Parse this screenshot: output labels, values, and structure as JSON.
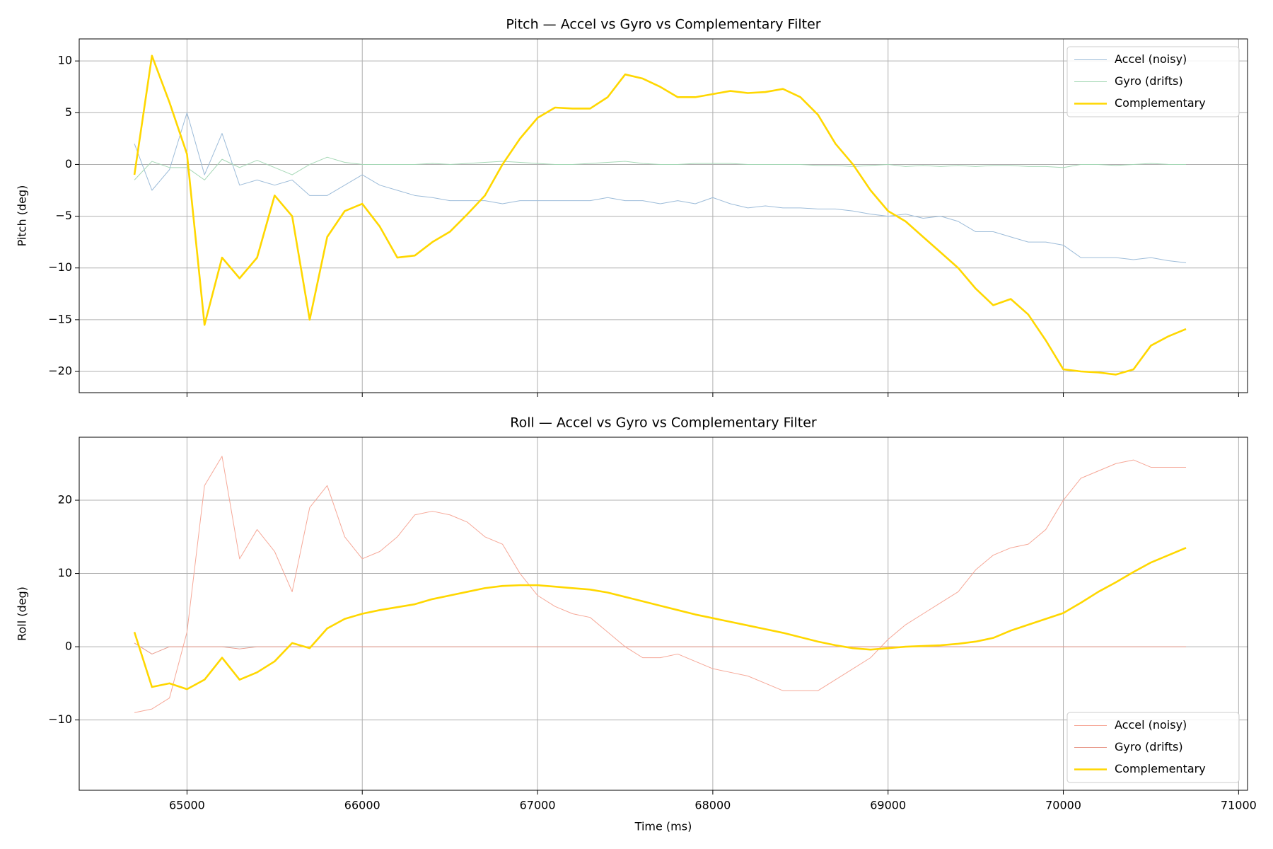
{
  "chart_data": [
    {
      "type": "line",
      "title": "Pitch — Accel vs Gyro vs Complementary Filter",
      "ylabel": "Pitch (deg)",
      "x": [
        64700,
        64800,
        64900,
        65000,
        65100,
        65200,
        65300,
        65400,
        65500,
        65600,
        65700,
        65800,
        65900,
        66000,
        66100,
        66200,
        66300,
        66400,
        66500,
        66600,
        66700,
        66800,
        66900,
        67000,
        67100,
        67200,
        67300,
        67400,
        67500,
        67600,
        67700,
        67800,
        67900,
        68000,
        68100,
        68200,
        68300,
        68400,
        68500,
        68600,
        68700,
        68800,
        68900,
        69000,
        69100,
        69200,
        69300,
        69400,
        69500,
        69600,
        69700,
        69800,
        69900,
        70000,
        70100,
        70200,
        70300,
        70400,
        70500,
        70600,
        70700
      ],
      "series": [
        {
          "name": "Accel (noisy)",
          "color": "#9dbcd9",
          "width": 1,
          "values": [
            2,
            -2.5,
            -0.5,
            5,
            -1,
            3,
            -2,
            -1.5,
            -2,
            -1.5,
            -3,
            -3,
            -2,
            -1,
            -2,
            -2.5,
            -3,
            -3.2,
            -3.5,
            -3.5,
            -3.5,
            -3.8,
            -3.5,
            -3.5,
            -3.5,
            -3.5,
            -3.5,
            -3.2,
            -3.5,
            -3.5,
            -3.8,
            -3.5,
            -3.8,
            -3.2,
            -3.8,
            -4.2,
            -4,
            -4.2,
            -4.2,
            -4.3,
            -4.3,
            -4.5,
            -4.8,
            -5,
            -4.8,
            -5.2,
            -5,
            -5.5,
            -6.5,
            -6.5,
            -7,
            -7.5,
            -7.5,
            -7.8,
            -9,
            -9,
            -9,
            -9.2,
            -9,
            -9.3,
            -9.5
          ]
        },
        {
          "name": "Gyro (drifts)",
          "color": "#a6d8b6",
          "width": 1,
          "values": [
            -1.5,
            0.3,
            -0.3,
            -0.3,
            -1.5,
            0.5,
            -0.3,
            0.4,
            -0.3,
            -1,
            0,
            0.7,
            0.2,
            0,
            0,
            0,
            0,
            0.1,
            0,
            0.1,
            0.2,
            0.3,
            0.2,
            0.1,
            0,
            0,
            0.1,
            0.2,
            0.3,
            0.1,
            0,
            0,
            0.1,
            0.1,
            0.1,
            0,
            0,
            0,
            0,
            -0.1,
            -0.1,
            -0.2,
            -0.1,
            0,
            -0.2,
            -0.1,
            -0.2,
            -0.1,
            -0.2,
            -0.1,
            -0.1,
            -0.2,
            -0.2,
            -0.3,
            0,
            0,
            -0.1,
            0,
            0.1,
            0,
            0
          ]
        },
        {
          "name": "Complementary",
          "color": "#ffd700",
          "width": 2.6,
          "values": [
            -1,
            10.5,
            6,
            1,
            -15.5,
            -9,
            -11,
            -9,
            -3,
            -5,
            -15,
            -7,
            -4.5,
            -3.8,
            -6,
            -9,
            -8.8,
            -7.5,
            -6.5,
            -4.8,
            -3,
            0,
            2.5,
            4.5,
            5.5,
            5.4,
            5.4,
            6.5,
            8.7,
            8.3,
            7.5,
            6.5,
            6.5,
            6.8,
            7.1,
            6.9,
            7,
            7.3,
            6.5,
            4.8,
            2,
            0,
            -2.5,
            -4.5,
            -5.5,
            -7,
            -8.5,
            -10,
            -12,
            -13.6,
            -13,
            -14.5,
            -17,
            -19.8,
            -20,
            -20.1,
            -20.3,
            -19.8,
            -17.5,
            -16.6,
            -15.9
          ]
        }
      ],
      "xlim": [
        64385,
        71051
      ],
      "xticks": [
        65000,
        66000,
        67000,
        68000,
        69000,
        70000,
        71000
      ],
      "ylim": [
        -22.05,
        12.13
      ],
      "yticks": [
        {
          "value": -20,
          "label": "−20"
        },
        {
          "value": -15,
          "label": "−15"
        },
        {
          "value": -10,
          "label": "−10"
        },
        {
          "value": -5,
          "label": "−5"
        },
        0,
        5,
        10
      ],
      "grid": true,
      "legend": "upper right"
    },
    {
      "type": "line",
      "title": "Roll — Accel vs Gyro vs Complementary Filter",
      "ylabel": "Roll (deg)",
      "xlabel": "Time (ms)",
      "x": [
        64700,
        64800,
        64900,
        65000,
        65100,
        65200,
        65300,
        65400,
        65500,
        65600,
        65700,
        65800,
        65900,
        66000,
        66100,
        66200,
        66300,
        66400,
        66500,
        66600,
        66700,
        66800,
        66900,
        67000,
        67100,
        67200,
        67300,
        67400,
        67500,
        67600,
        67700,
        67800,
        67900,
        68000,
        68100,
        68200,
        68300,
        68400,
        68500,
        68600,
        68700,
        68800,
        68900,
        69000,
        69100,
        69200,
        69300,
        69400,
        69500,
        69600,
        69700,
        69800,
        69900,
        70000,
        70100,
        70200,
        70300,
        70400,
        70500,
        70600,
        70700
      ],
      "series": [
        {
          "name": "Accel (noisy)",
          "color": "#f6a898",
          "width": 1,
          "values": [
            -9,
            -8.5,
            -7,
            2,
            22,
            26,
            12,
            16,
            13,
            7.5,
            19,
            22,
            15,
            12,
            13,
            15,
            18,
            18.5,
            18,
            17,
            15,
            14,
            10,
            7,
            5.5,
            4.5,
            4,
            2,
            0,
            -1.5,
            -1.5,
            -1,
            -2,
            -3,
            -3.5,
            -4,
            -5,
            -6,
            -6,
            -6,
            -4.5,
            -3,
            -1.5,
            1,
            3,
            4.5,
            6,
            7.5,
            10.5,
            12.5,
            13.5,
            14,
            16,
            20,
            23,
            24,
            25,
            25.5,
            24.5,
            24.5,
            24.5
          ]
        },
        {
          "name": "Gyro (drifts)",
          "color": "#e89a8c",
          "width": 1,
          "values": [
            0.5,
            -1,
            0,
            0,
            0,
            0,
            -0.3,
            0,
            0,
            0,
            0,
            0,
            0,
            0,
            0,
            0,
            0,
            0,
            0,
            0,
            0,
            0,
            0,
            0,
            0,
            0,
            0,
            0,
            0,
            0,
            0,
            0,
            0,
            0,
            0,
            0,
            0,
            0,
            0,
            0,
            0,
            0,
            0,
            0,
            0,
            0,
            0,
            0,
            0,
            0,
            0,
            0,
            0,
            0,
            0,
            0,
            0,
            0,
            0,
            0,
            0
          ]
        },
        {
          "name": "Complementary",
          "color": "#ffd700",
          "width": 2.6,
          "values": [
            2,
            -5.5,
            -5,
            -5.8,
            -4.5,
            -1.5,
            -4.5,
            -3.5,
            -2,
            0.5,
            -0.2,
            2.5,
            3.8,
            4.5,
            5,
            5.4,
            5.8,
            6.5,
            7,
            7.5,
            8,
            8.3,
            8.4,
            8.4,
            8.2,
            8,
            7.8,
            7.4,
            6.8,
            6.2,
            5.6,
            5,
            4.4,
            3.9,
            3.4,
            2.9,
            2.4,
            1.9,
            1.3,
            0.7,
            0.2,
            -0.2,
            -0.4,
            -0.2,
            0,
            0.1,
            0.2,
            0.4,
            0.7,
            1.2,
            2.2,
            3,
            3.8,
            4.6,
            6,
            7.5,
            8.8,
            10.2,
            11.5,
            12.5,
            13.5
          ]
        }
      ],
      "xlim": [
        64385,
        71051
      ],
      "xticks": [
        65000,
        66000,
        67000,
        68000,
        69000,
        70000,
        71000
      ],
      "ylim": [
        -19.6,
        28.6
      ],
      "yticks": [
        {
          "value": -10,
          "label": "−10"
        },
        0,
        10,
        20
      ],
      "grid": true,
      "legend": "lower right"
    }
  ]
}
